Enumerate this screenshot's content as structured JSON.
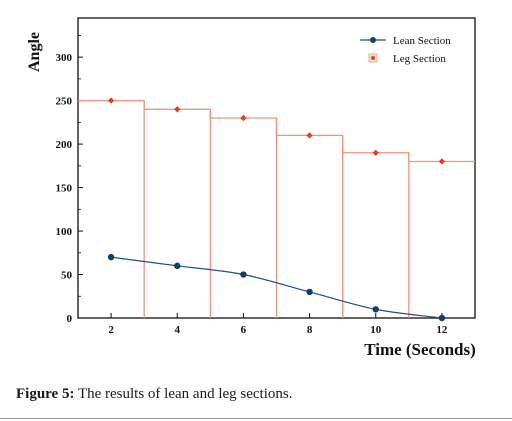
{
  "chart_data": {
    "type": "line",
    "title": "",
    "xlabel": "Time (Seconds)",
    "ylabel": "Angle",
    "xlim": [
      1,
      13
    ],
    "ylim": [
      0,
      345
    ],
    "x_ticks": [
      2,
      4,
      6,
      8,
      10,
      12
    ],
    "y_ticks": [
      0,
      50,
      100,
      150,
      200,
      250,
      300
    ],
    "grid": false,
    "legend_position": "top-right",
    "series": [
      {
        "name": "Lean Section",
        "style": "smooth line with dot markers",
        "color": "#1f4e8c",
        "marker_color": "#123d73",
        "x": [
          2,
          4,
          6,
          8,
          10,
          12
        ],
        "values": [
          70,
          60,
          50,
          30,
          10,
          0
        ]
      },
      {
        "name": "Leg Section",
        "style": "step outline with diamond markers",
        "color": "#f0957c",
        "marker_color": "#e8401a",
        "x": [
          2,
          4,
          6,
          8,
          10,
          12
        ],
        "values": [
          250,
          240,
          230,
          210,
          190,
          180
        ]
      }
    ]
  },
  "caption": {
    "label": "Figure 5:",
    "text": " The results of lean and leg sections."
  }
}
